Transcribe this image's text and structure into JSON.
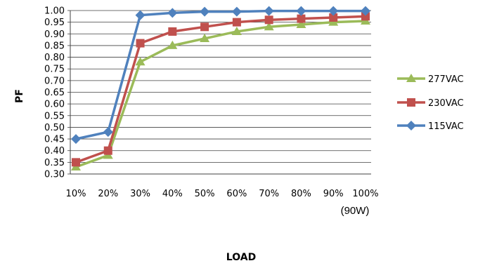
{
  "chart_data": {
    "type": "line",
    "categories": [
      "10%",
      "20%",
      "30%",
      "40%",
      "50%",
      "60%",
      "70%",
      "80%",
      "90%",
      "100%"
    ],
    "x_unit_note": "(90W)",
    "xlabel": "LOAD",
    "ylabel": "PF",
    "ylim": [
      0.3,
      1.0
    ],
    "y_ticks": [
      "0.30",
      "0.35",
      "0.40",
      "0.45",
      "0.50",
      "0.55",
      "0.60",
      "0.65",
      "0.70",
      "0.75",
      "0.80",
      "0.85",
      "0.90",
      "0.95",
      "1.00"
    ],
    "grid": "horizontal",
    "legend_position": "right",
    "series": [
      {
        "name": "277VAC",
        "color": "#9BBB59",
        "marker": "triangle",
        "values": [
          0.33,
          0.38,
          0.78,
          0.85,
          0.88,
          0.91,
          0.93,
          0.94,
          0.95,
          0.955
        ]
      },
      {
        "name": "230VAC",
        "color": "#C0504D",
        "marker": "square",
        "values": [
          0.35,
          0.4,
          0.86,
          0.91,
          0.93,
          0.95,
          0.96,
          0.965,
          0.97,
          0.975
        ]
      },
      {
        "name": "115VAC",
        "color": "#4F81BD",
        "marker": "diamond",
        "values": [
          0.45,
          0.48,
          0.98,
          0.99,
          0.995,
          0.995,
          0.998,
          0.998,
          0.998,
          0.998
        ]
      }
    ]
  }
}
